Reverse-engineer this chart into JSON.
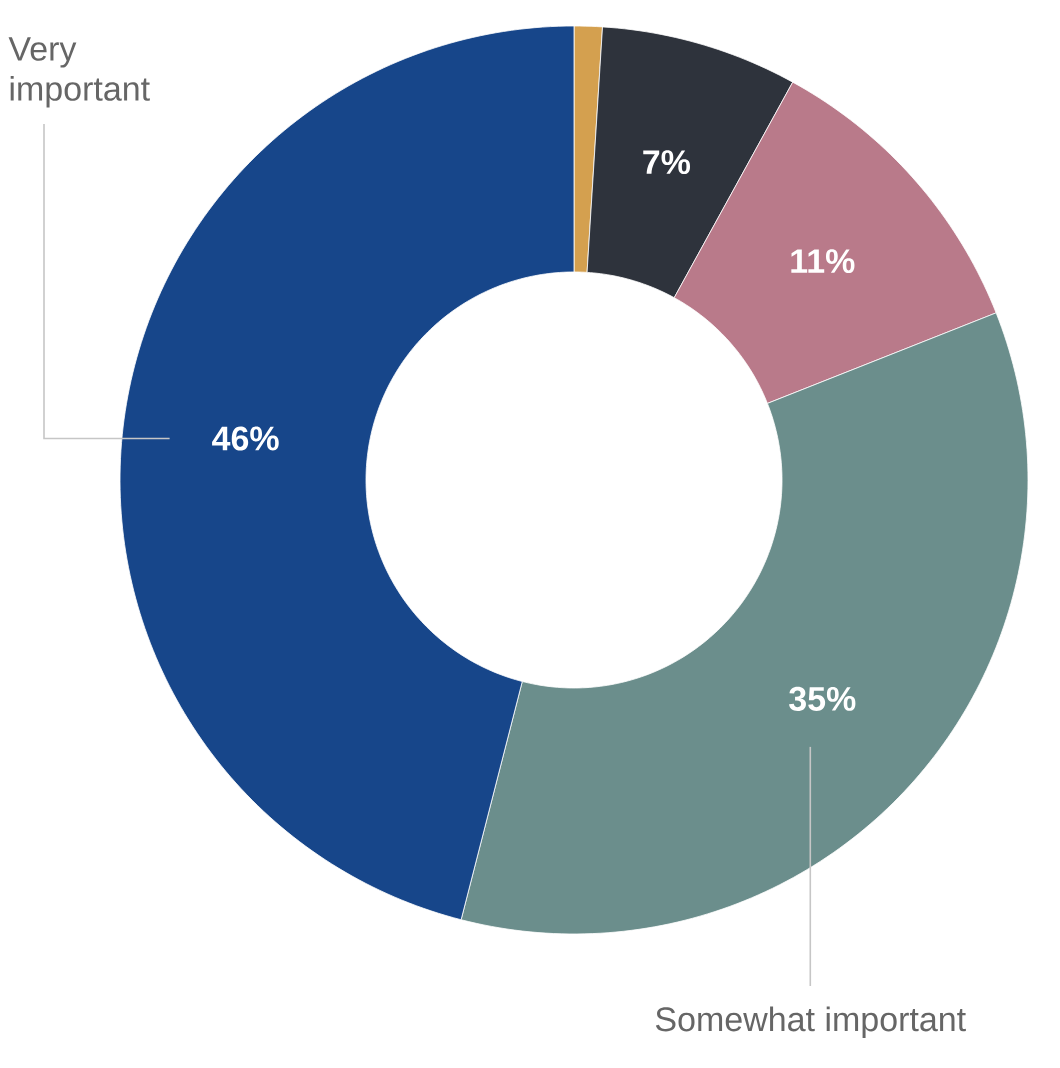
{
  "chart_data": {
    "type": "donut",
    "categories": [
      null,
      null,
      null,
      "Somewhat important",
      "Very important"
    ],
    "values": [
      1,
      7,
      11,
      35,
      46
    ],
    "colors": [
      "#d4a04f",
      "#2e333c",
      "#b97a8a",
      "#6b8e8c",
      "#17468a"
    ],
    "value_labels": [
      null,
      "7%",
      "11%",
      "35%",
      "46%"
    ]
  }
}
